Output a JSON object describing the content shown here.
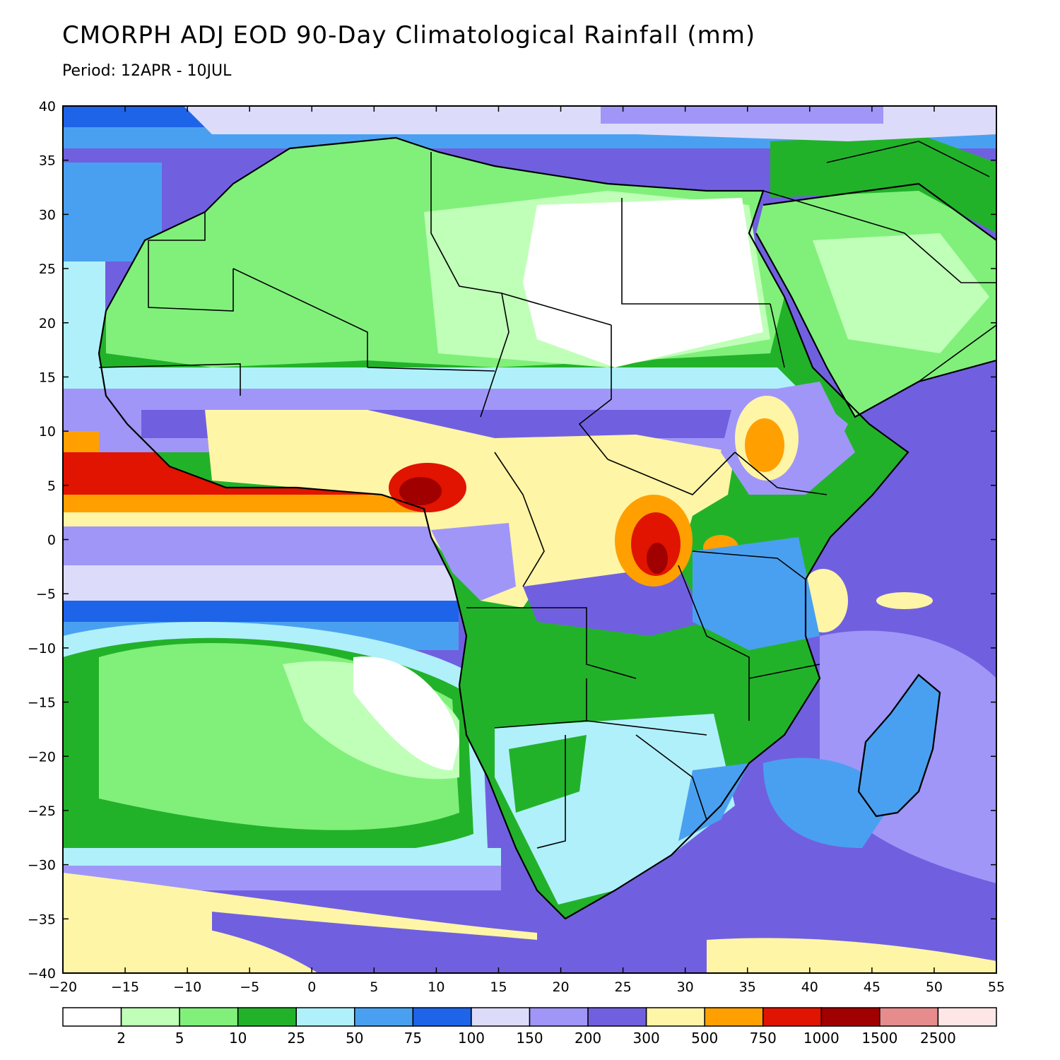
{
  "figure": {
    "title": "CMORPH ADJ EOD 90-Day Climatological Rainfall (mm)",
    "subtitle": "Period: 12APR - 10JUL"
  },
  "map": {
    "lon_range": [
      -20,
      55
    ],
    "lat_range": [
      -40,
      40
    ],
    "x_ticks": [
      "-20",
      "-15",
      "-10",
      "-5",
      "0",
      "5",
      "10",
      "15",
      "20",
      "25",
      "30",
      "35",
      "40",
      "45",
      "50",
      "55"
    ],
    "y_ticks": [
      "40",
      "35",
      "30",
      "25",
      "20",
      "15",
      "10",
      "5",
      "0",
      "-5",
      "-10",
      "-15",
      "-20",
      "-25",
      "-30",
      "-35",
      "-40"
    ],
    "land_outline_color": "#000000",
    "ocean_note_colors": {
      "dry_south": "#fff5a6",
      "background": "#7060e0"
    }
  },
  "colorbar": {
    "colors": [
      "#ffffff",
      "#c0ffb8",
      "#80f07a",
      "#22b22a",
      "#b0f0fa",
      "#4aa0f0",
      "#1e64e8",
      "#dcdcfa",
      "#a096f8",
      "#7060e0",
      "#fff5a6",
      "#ffa000",
      "#e01400",
      "#a00000",
      "#e68c8c",
      "#ffe6e6"
    ],
    "labels": [
      "2",
      "5",
      "10",
      "25",
      "50",
      "75",
      "100",
      "150",
      "200",
      "300",
      "500",
      "750",
      "1000",
      "1500",
      "2500"
    ]
  }
}
